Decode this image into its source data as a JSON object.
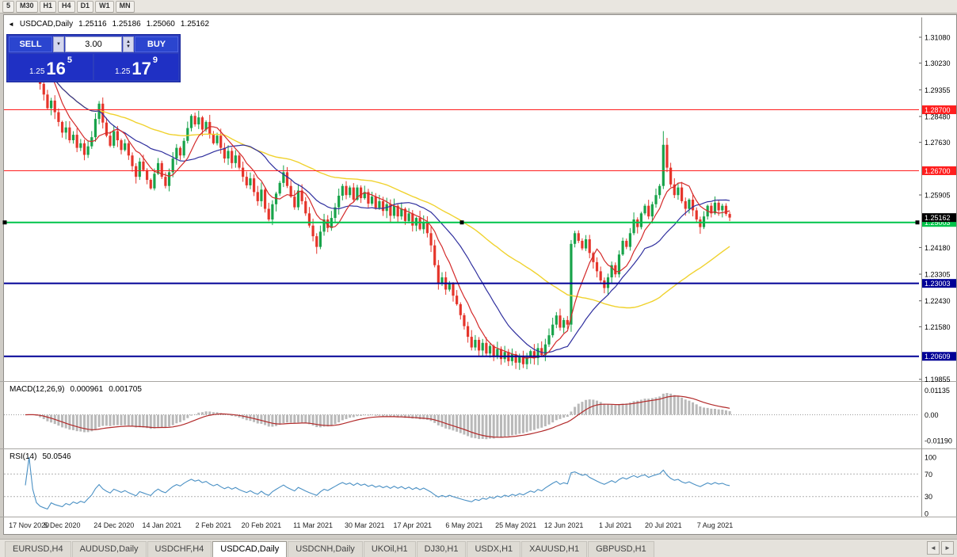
{
  "toolbar": {
    "timeframes": [
      "5",
      "M30",
      "H1",
      "H4",
      "D1",
      "W1",
      "MN"
    ]
  },
  "icons": {
    "collapse": "◄",
    "scroll_left": "◄",
    "scroll_right": "►",
    "spin_up": "▲",
    "spin_down": "▼"
  },
  "header": {
    "symbol": "USDCAD,Daily",
    "open": "1.25116",
    "high": "1.25186",
    "low": "1.25060",
    "close": "1.25162"
  },
  "trade_panel": {
    "sell_label": "SELL",
    "buy_label": "BUY",
    "volume": "3.00",
    "bid": {
      "prefix": "1.25",
      "big": "16",
      "sup": "5"
    },
    "ask": {
      "prefix": "1.25",
      "big": "17",
      "sup": "9"
    }
  },
  "chart_data": {
    "type": "candlestick",
    "symbol": "USDCAD",
    "timeframe": "Daily",
    "price_range_visible": [
      1.19855,
      1.3108
    ],
    "current_price": {
      "value": 1.25162,
      "label": "1.25162",
      "bg": "#000000"
    },
    "price_axis_ticks": [
      "1.31080",
      "1.30230",
      "1.29355",
      "1.28480",
      "1.27630",
      "1.25905",
      "1.24180",
      "1.23305",
      "1.22430",
      "1.21580",
      "1.19855"
    ],
    "hlines": [
      {
        "name": "resistance-line-1",
        "price": 1.287,
        "label": "1.28700",
        "color": "#ff1e1e",
        "width": 1
      },
      {
        "name": "resistance-line-2",
        "price": 1.267,
        "label": "1.26700",
        "color": "#ff1e1e",
        "width": 1
      },
      {
        "name": "support-line-green",
        "price": 1.25003,
        "label": "1.25003",
        "color": "#00c44a",
        "width": 2,
        "handles": true
      },
      {
        "name": "support-line-navy-1",
        "price": 1.23003,
        "label": "1.23003",
        "color": "#000096",
        "width": 2
      },
      {
        "name": "support-line-navy-2",
        "price": 1.20609,
        "label": "1.20609",
        "color": "#000096",
        "width": 2
      }
    ],
    "closes": [
      1.306,
      1.3082,
      1.3055,
      1.3,
      1.2955,
      1.292,
      1.2875,
      1.29,
      1.2862,
      1.283,
      1.2795,
      1.2812,
      1.277,
      1.2788,
      1.2745,
      1.276,
      1.2722,
      1.275,
      1.278,
      1.284,
      1.289,
      1.2828,
      1.2785,
      1.2752,
      1.28,
      1.277,
      1.2738,
      1.276,
      1.272,
      1.2685,
      1.265,
      1.27,
      1.2672,
      1.264,
      1.2612,
      1.266,
      1.2695,
      1.265,
      1.262,
      1.2665,
      1.271,
      1.2745,
      1.272,
      1.2768,
      1.281,
      1.285,
      1.2822,
      1.2845,
      1.2805,
      1.283,
      1.279,
      1.276,
      1.2785,
      1.2745,
      1.271,
      1.2735,
      1.2695,
      1.272,
      1.268,
      1.265,
      1.2622,
      1.2645,
      1.26,
      1.257,
      1.2608,
      1.2545,
      1.251,
      1.256,
      1.2595,
      1.263,
      1.2665,
      1.262,
      1.2585,
      1.255,
      1.2605,
      1.257,
      1.253,
      1.249,
      1.2455,
      1.242,
      1.247,
      1.251,
      1.2482,
      1.2515,
      1.255,
      1.2588,
      1.262,
      1.259,
      1.2615,
      1.2575,
      1.2615,
      1.258,
      1.26,
      1.2562,
      1.2585,
      1.2548,
      1.257,
      1.2538,
      1.256,
      1.2522,
      1.2555,
      1.252,
      1.2545,
      1.2505,
      1.253,
      1.249,
      1.2515,
      1.2478,
      1.25,
      1.2465,
      1.2425,
      1.236,
      1.23,
      1.232,
      1.228,
      1.23,
      1.226,
      1.2232,
      1.2196,
      1.216,
      1.2125,
      1.209,
      1.2115,
      1.208,
      1.2105,
      1.207,
      1.2095,
      1.206,
      1.2085,
      1.2052,
      1.2075,
      1.2045,
      1.2068,
      1.204,
      1.2062,
      1.2035,
      1.2058,
      1.2078,
      1.2055,
      1.2088,
      1.2065,
      1.21,
      1.213,
      1.2165,
      1.2195,
      1.2155,
      1.218,
      1.2165,
      1.243,
      1.2465,
      1.244,
      1.2415,
      1.2445,
      1.24,
      1.237,
      1.234,
      1.231,
      1.2285,
      1.232,
      1.236,
      1.233,
      1.2395,
      1.244,
      1.242,
      1.2465,
      1.251,
      1.2485,
      1.253,
      1.2555,
      1.252,
      1.256,
      1.259,
      1.262,
      1.2755,
      1.268,
      1.2625,
      1.259,
      1.2615,
      1.257,
      1.2545,
      1.2575,
      1.254,
      1.251,
      1.2485,
      1.252,
      1.2555,
      1.253,
      1.2565,
      1.254,
      1.2555,
      1.2528,
      1.25162
    ],
    "wick_overrides": [
      {
        "i": 173,
        "high": 1.28
      }
    ],
    "ma": [
      {
        "period": 55,
        "color": "#f0d22e",
        "width": 1.4
      },
      {
        "period": 21,
        "color": "#2f2f9e",
        "width": 1.2
      },
      {
        "period": 8,
        "color": "#d42a2a",
        "width": 1.2
      }
    ],
    "date_ticks": [
      {
        "i": 1,
        "label": "17 Nov 2020"
      },
      {
        "i": 10,
        "label": "5 Dec 2020"
      },
      {
        "i": 24,
        "label": "24 Dec 2020"
      },
      {
        "i": 37,
        "label": "14 Jan 2021"
      },
      {
        "i": 51,
        "label": "2 Feb 2021"
      },
      {
        "i": 64,
        "label": "20 Feb 2021"
      },
      {
        "i": 78,
        "label": "11 Mar 2021"
      },
      {
        "i": 92,
        "label": "30 Mar 2021"
      },
      {
        "i": 105,
        "label": "17 Apr 2021"
      },
      {
        "i": 119,
        "label": "6 May 2021"
      },
      {
        "i": 133,
        "label": "25 May 2021"
      },
      {
        "i": 146,
        "label": "12 Jun 2021"
      },
      {
        "i": 160,
        "label": "1 Jul 2021"
      },
      {
        "i": 173,
        "label": "20 Jul 2021"
      },
      {
        "i": 187,
        "label": "7 Aug 2021"
      }
    ],
    "macd": {
      "label": "MACD(12,26,9)",
      "value1": "0.000961",
      "value2": "0.001705",
      "fast": 12,
      "slow": 26,
      "signal_period": 9,
      "axis": [
        "0.01135",
        "0.00",
        "-0.01190"
      ],
      "histogram_color": "#b9b9b9",
      "signal_color": "#b22a2a"
    },
    "rsi": {
      "label": "RSI(14)",
      "value": "50.0546",
      "period": 14,
      "axis": [
        "100",
        "70",
        "30",
        "0"
      ],
      "levels": [
        70,
        30
      ],
      "line_color": "#4a90c4"
    }
  },
  "tabs": {
    "items": [
      "EURUSD,H4",
      "AUDUSD,Daily",
      "USDCHF,H4",
      "USDCAD,Daily",
      "USDCNH,Daily",
      "UKOil,H1",
      "DJ30,H1",
      "USDX,H1",
      "XAUUSD,H1",
      "GBPUSD,H1"
    ],
    "active_index": 3
  }
}
